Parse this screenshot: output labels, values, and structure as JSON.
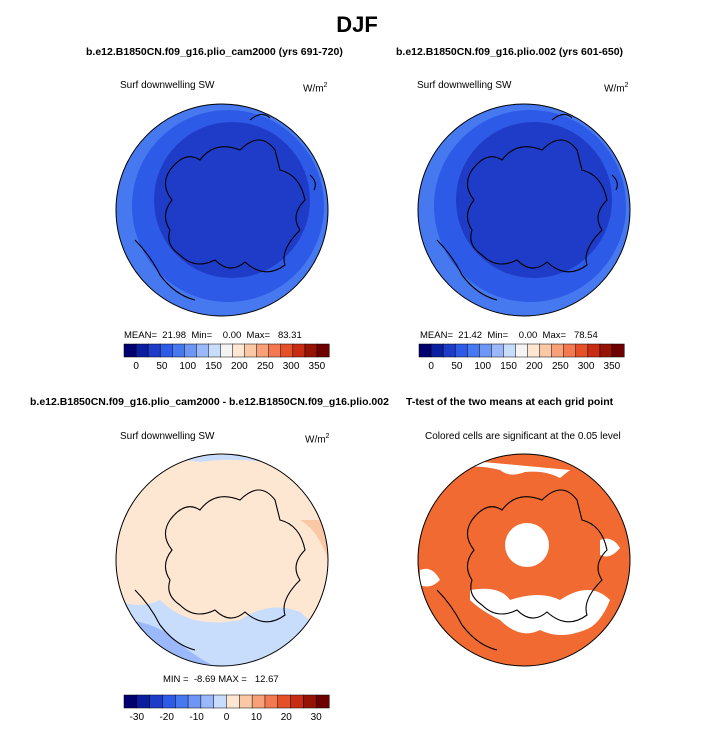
{
  "main_title": "DJF",
  "panels": [
    {
      "title": "b.e12.B1850CN.f09_g16.plio_cam2000 (yrs 691-720)",
      "variable": "Surf downwelling SW",
      "units_base": "W/m",
      "units_exp": "2",
      "stats": {
        "mean_label": "MEAN=",
        "mean": "21.98",
        "min_label": "Min=",
        "min": "0.00",
        "max_label": "Max=",
        "max": "83.31"
      }
    },
    {
      "title": "b.e12.B1850CN.f09_g16.plio.002 (yrs 601-650)",
      "variable": "Surf downwelling SW",
      "units_base": "W/m",
      "units_exp": "2",
      "stats": {
        "mean_label": "MEAN=",
        "mean": "21.42",
        "min_label": "Min=",
        "min": "0.00",
        "max_label": "Max=",
        "max": "78.54"
      }
    },
    {
      "title": "b.e12.B1850CN.f09_g16.plio_cam2000 - b.e12.B1850CN.f09_g16.plio.002",
      "variable": "Surf downwelling SW",
      "units_base": "W/m",
      "units_exp": "2",
      "stats": {
        "min_label": "MIN =",
        "min": "-8.69",
        "max_label": "MAX =",
        "max": "12.67"
      }
    },
    {
      "title": "T-test of the two means at each grid point",
      "subtitle": "Colored cells are significant at the 0.05 level"
    }
  ],
  "chart_data": [
    {
      "type": "heatmap",
      "title": "b.e12.B1850CN.f09_g16.plio_cam2000 (yrs 691-720)",
      "projection": "north polar stereographic",
      "variable": "Surf downwelling SW",
      "units": "W/m2",
      "colorbar": {
        "ticks": [
          0,
          50,
          100,
          150,
          200,
          250,
          300,
          350
        ],
        "tick_labels": [
          "0",
          "50",
          "100",
          "150",
          "200",
          "250",
          "300",
          "350"
        ],
        "colors": [
          "#00006e",
          "#0a1fa0",
          "#1e3cc8",
          "#2d5ae6",
          "#4678f0",
          "#6e96f5",
          "#9bb9fa",
          "#c8dcfc",
          "#f4f4f4",
          "#fde6d2",
          "#fbc8a6",
          "#f8a078",
          "#f47850",
          "#e65028",
          "#c82d14",
          "#961405",
          "#6e0000"
        ]
      },
      "stats": {
        "mean": 21.98,
        "min": 0.0,
        "max": 83.31
      },
      "field": "low values (~0-50 W/m2) over the entire Arctic domain; darkest near the pole, brighter toward the southern rim"
    },
    {
      "type": "heatmap",
      "title": "b.e12.B1850CN.f09_g16.plio.002 (yrs 601-650)",
      "projection": "north polar stereographic",
      "variable": "Surf downwelling SW",
      "units": "W/m2",
      "colorbar": {
        "ticks": [
          0,
          50,
          100,
          150,
          200,
          250,
          300,
          350
        ],
        "tick_labels": [
          "0",
          "50",
          "100",
          "150",
          "200",
          "250",
          "300",
          "350"
        ]
      },
      "stats": {
        "mean": 21.42,
        "min": 0.0,
        "max": 78.54
      },
      "field": "low values (~0-50 W/m2) over the entire Arctic domain; darkest near the pole"
    },
    {
      "type": "heatmap",
      "title": "b.e12.B1850CN.f09_g16.plio_cam2000 - b.e12.B1850CN.f09_g16.plio.002",
      "projection": "north polar stereographic",
      "variable": "Surf downwelling SW",
      "units": "W/m2",
      "colorbar": {
        "ticks": [
          -30,
          -20,
          -10,
          0,
          10,
          20,
          30
        ],
        "tick_labels": [
          "-30",
          "-20",
          "-10",
          "0",
          "10",
          "20",
          "30"
        ],
        "colors": [
          "#00006e",
          "#0a1fa0",
          "#1e3cc8",
          "#2d5ae6",
          "#4678f0",
          "#6e96f5",
          "#9bb9fa",
          "#c8dcfc",
          "#fde6d2",
          "#fbc8a6",
          "#f8a078",
          "#f47850",
          "#e65028",
          "#c82d14",
          "#961405",
          "#6e0000"
        ]
      },
      "stats": {
        "min": -8.69,
        "max": 12.67
      },
      "field": "mostly weakly positive (0-5) with weakly negative regions over Eurasia and the Canadian Arctic fringe"
    },
    {
      "type": "heatmap",
      "title": "T-test of the two means at each grid point",
      "projection": "north polar stereographic",
      "note": "Colored cells are significant at the 0.05 level",
      "field": "most cells significant (orange); non-significant (white) at the pole and scattered patches over Eurasia"
    }
  ]
}
